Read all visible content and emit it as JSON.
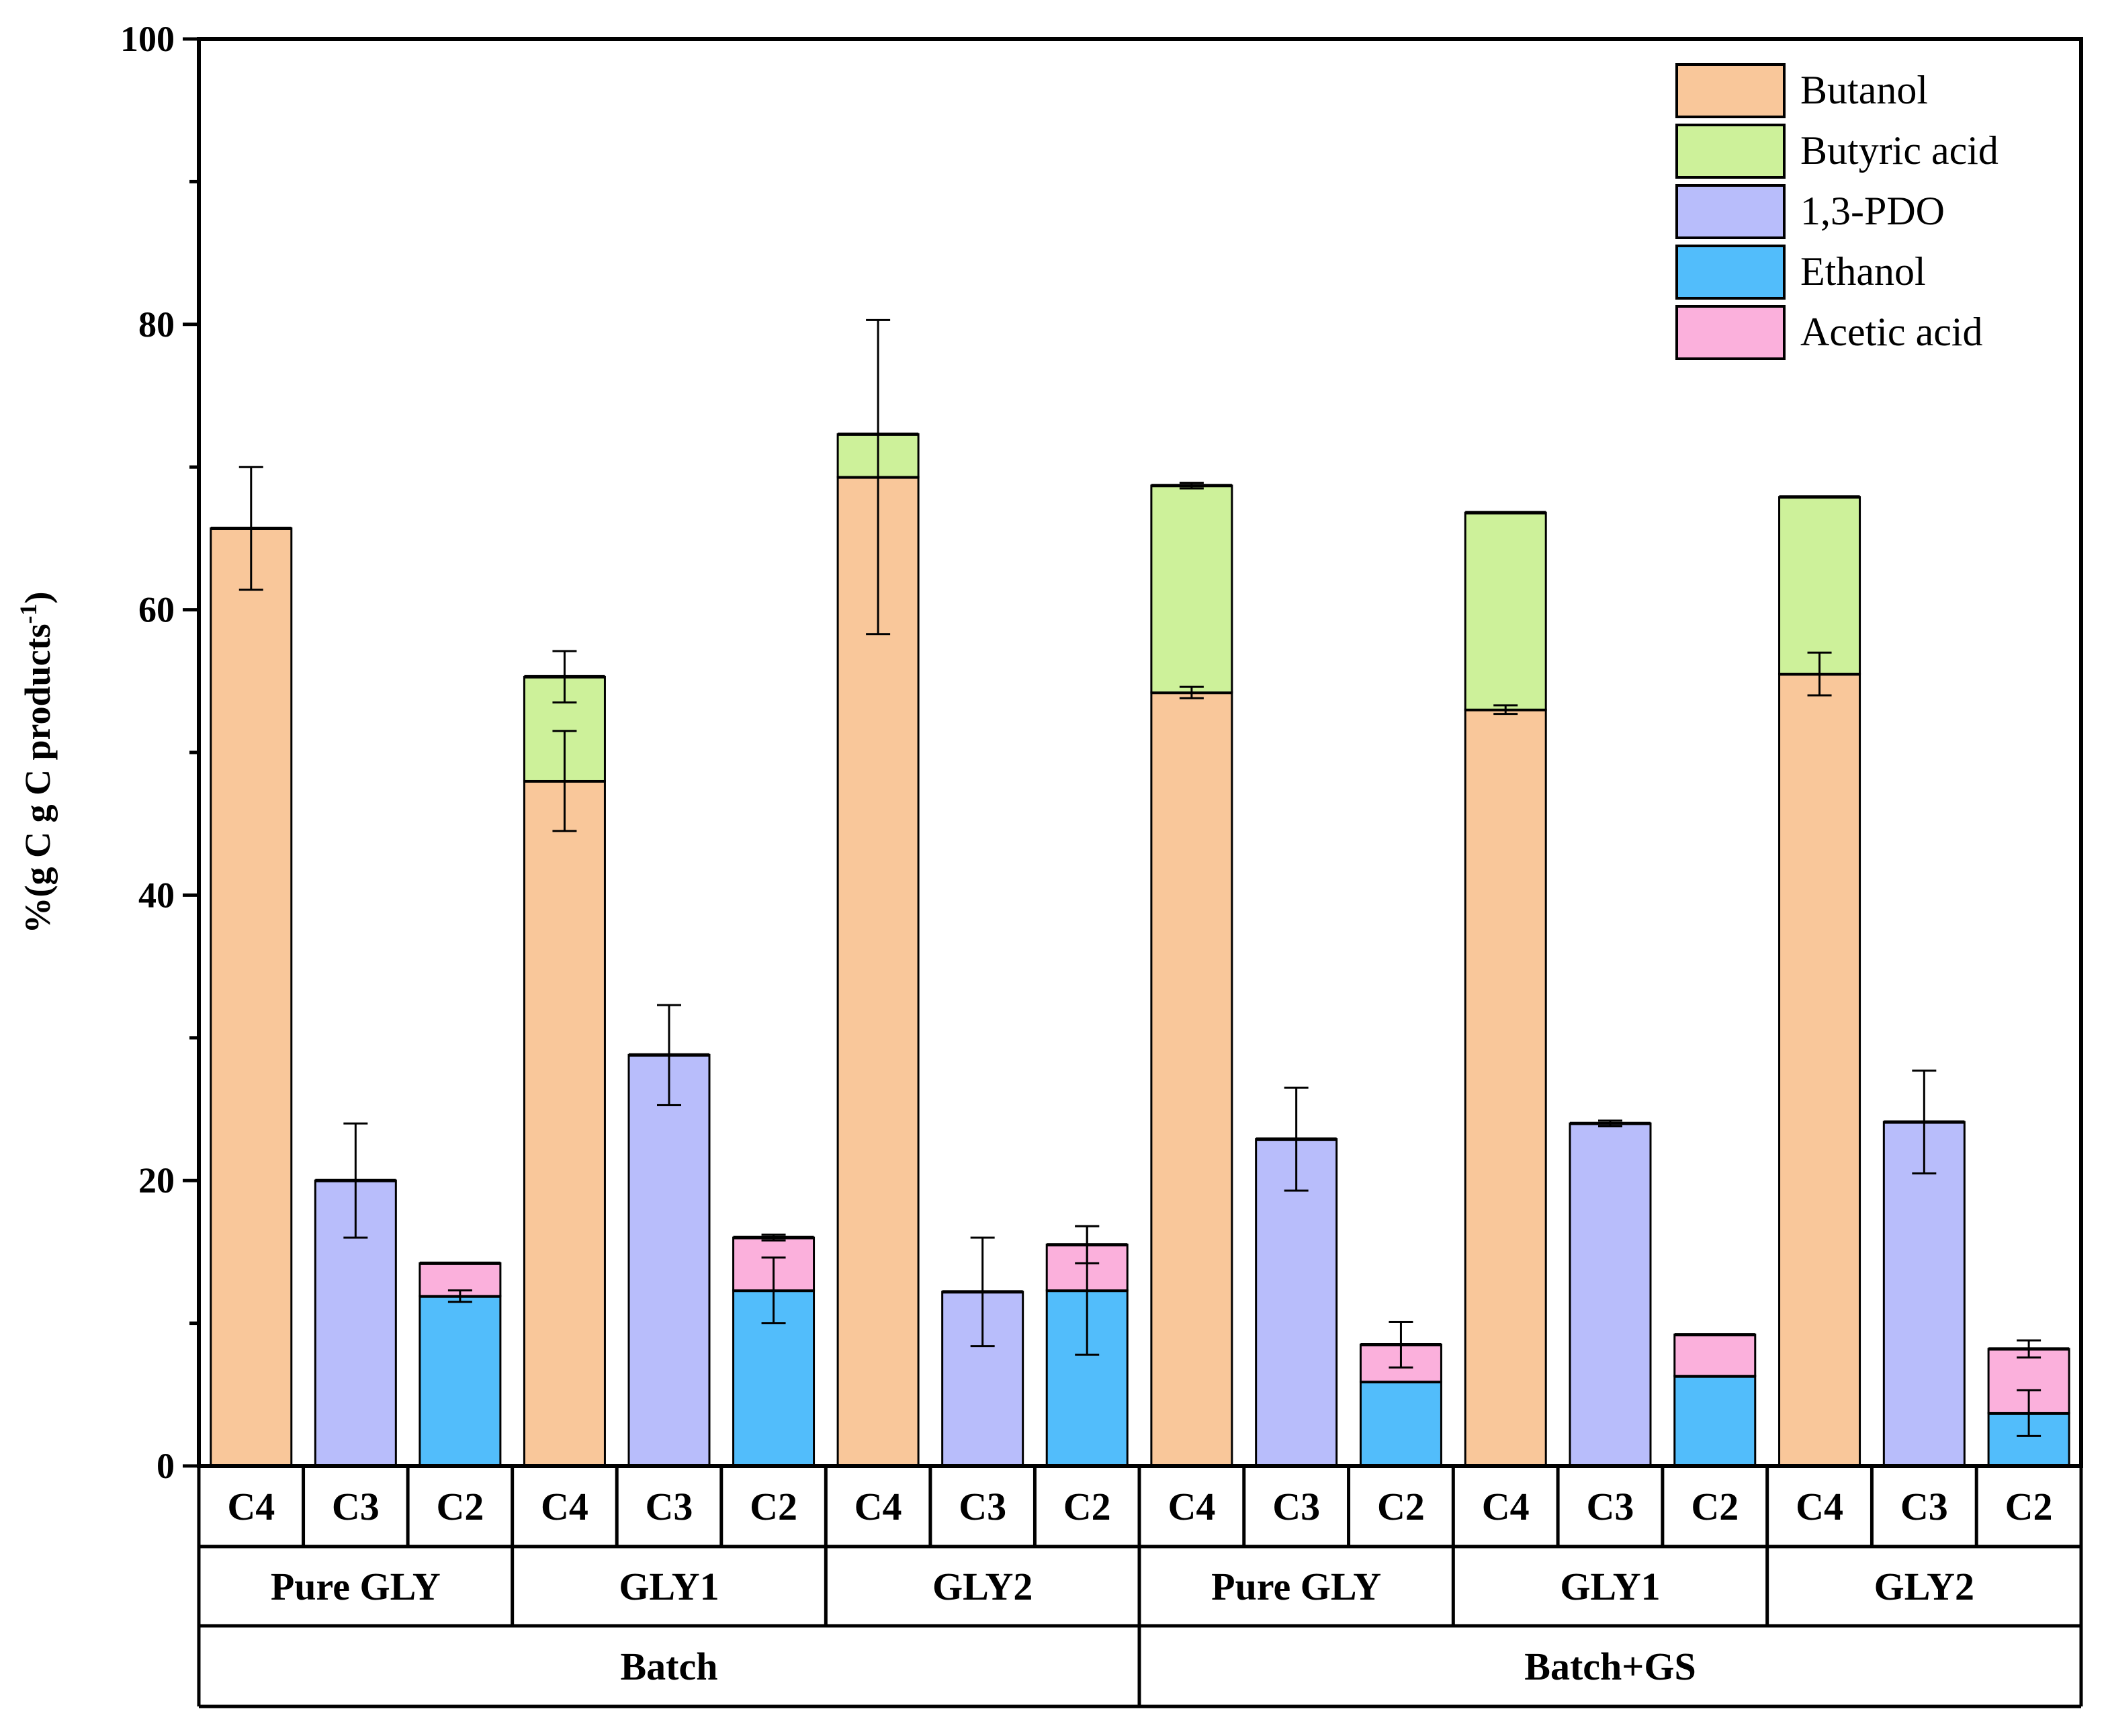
{
  "chart_data": {
    "type": "bar",
    "stacked": true,
    "ylabel_main": "%(g C g C products",
    "ylabel_sup": "-1",
    "ylabel_close": ")",
    "ylim": [
      0,
      100
    ],
    "yticks": [
      "0",
      "20",
      "40",
      "60",
      "80",
      "100"
    ],
    "legend": {
      "position": "top-right",
      "entries": [
        {
          "key": "butanol",
          "label": "Butanol",
          "color": "#F9C79A"
        },
        {
          "key": "butyric",
          "label": "Butyric acid",
          "color": "#CDF19A"
        },
        {
          "key": "pdo",
          "label": "1,3-PDO",
          "color": "#B8BDFB"
        },
        {
          "key": "ethanol",
          "label": "Ethanol",
          "color": "#52BDFB"
        },
        {
          "key": "acetic",
          "label": "Acetic acid",
          "color": "#FBB0DC"
        }
      ]
    },
    "top_level_groups": [
      "Batch",
      "Batch+GS"
    ],
    "substrate_groups": [
      {
        "label": "Pure GLY",
        "parent": 0
      },
      {
        "label": "GLY1",
        "parent": 0
      },
      {
        "label": "GLY2",
        "parent": 0
      },
      {
        "label": "Pure GLY",
        "parent": 1
      },
      {
        "label": "GLY1",
        "parent": 1
      },
      {
        "label": "GLY2",
        "parent": 1
      }
    ],
    "bars": [
      {
        "label": "C4",
        "substrate": 0,
        "segments": [
          {
            "s": "butanol",
            "v": 65.7,
            "err": 4.3
          }
        ]
      },
      {
        "label": "C3",
        "substrate": 0,
        "segments": [
          {
            "s": "pdo",
            "v": 20.0,
            "err": 4.0
          }
        ]
      },
      {
        "label": "C2",
        "substrate": 0,
        "segments": [
          {
            "s": "ethanol",
            "v": 11.9,
            "err": 0.4
          },
          {
            "s": "acetic",
            "v": 2.3
          }
        ]
      },
      {
        "label": "C4",
        "substrate": 1,
        "segments": [
          {
            "s": "butanol",
            "v": 48.0,
            "err": 3.5
          },
          {
            "s": "butyric",
            "v": 7.3,
            "err": 1.8
          }
        ]
      },
      {
        "label": "C3",
        "substrate": 1,
        "segments": [
          {
            "s": "pdo",
            "v": 28.8,
            "err": 3.5
          }
        ]
      },
      {
        "label": "C2",
        "substrate": 1,
        "segments": [
          {
            "s": "ethanol",
            "v": 12.3,
            "err": 2.3
          },
          {
            "s": "acetic",
            "v": 3.7,
            "err": 0.2
          }
        ]
      },
      {
        "label": "C4",
        "substrate": 2,
        "segments": [
          {
            "s": "butanol",
            "v": 69.3,
            "err": 11.0
          },
          {
            "s": "butyric",
            "v": 3.0
          }
        ]
      },
      {
        "label": "C3",
        "substrate": 2,
        "segments": [
          {
            "s": "pdo",
            "v": 12.2,
            "err": 3.8
          }
        ]
      },
      {
        "label": "C2",
        "substrate": 2,
        "segments": [
          {
            "s": "ethanol",
            "v": 12.3,
            "err": 4.5
          },
          {
            "s": "acetic",
            "v": 3.2,
            "err": 1.3
          }
        ]
      },
      {
        "label": "C4",
        "substrate": 3,
        "segments": [
          {
            "s": "butanol",
            "v": 54.2,
            "err": 0.4
          },
          {
            "s": "butyric",
            "v": 14.5,
            "err": 0.2
          }
        ]
      },
      {
        "label": "C3",
        "substrate": 3,
        "segments": [
          {
            "s": "pdo",
            "v": 22.9,
            "err": 3.6
          }
        ]
      },
      {
        "label": "C2",
        "substrate": 3,
        "segments": [
          {
            "s": "ethanol",
            "v": 5.9
          },
          {
            "s": "acetic",
            "v": 2.6,
            "err": 1.6
          }
        ]
      },
      {
        "label": "C4",
        "substrate": 4,
        "segments": [
          {
            "s": "butanol",
            "v": 53.0,
            "err": 0.3
          },
          {
            "s": "butyric",
            "v": 13.8
          }
        ]
      },
      {
        "label": "C3",
        "substrate": 4,
        "segments": [
          {
            "s": "pdo",
            "v": 24.0,
            "err": 0.2
          }
        ]
      },
      {
        "label": "C2",
        "substrate": 4,
        "segments": [
          {
            "s": "ethanol",
            "v": 6.3
          },
          {
            "s": "acetic",
            "v": 2.9
          }
        ]
      },
      {
        "label": "C4",
        "substrate": 5,
        "segments": [
          {
            "s": "butanol",
            "v": 55.5,
            "err": 1.5
          },
          {
            "s": "butyric",
            "v": 12.4
          }
        ]
      },
      {
        "label": "C3",
        "substrate": 5,
        "segments": [
          {
            "s": "pdo",
            "v": 24.1,
            "err": 3.6
          }
        ]
      },
      {
        "label": "C2",
        "substrate": 5,
        "segments": [
          {
            "s": "ethanol",
            "v": 3.7,
            "err": 1.6
          },
          {
            "s": "acetic",
            "v": 4.5,
            "err": 0.6
          }
        ]
      }
    ]
  }
}
